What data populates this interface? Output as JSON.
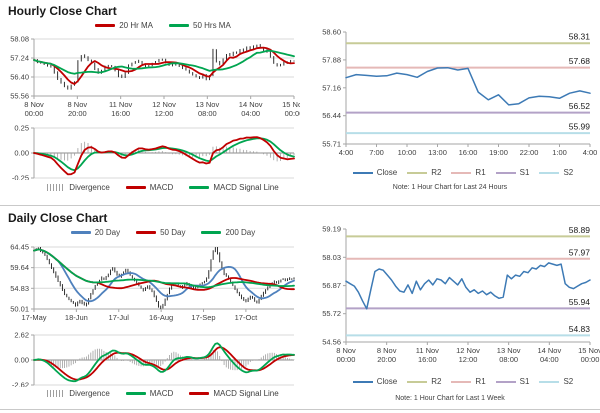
{
  "chart_data": [
    {
      "id": "hourly",
      "type": "line",
      "title": "Hourly Close Chart",
      "y_ticks": [
        "58.08",
        "57.24",
        "56.40",
        "55.56"
      ],
      "ylim": [
        55.56,
        58.08
      ],
      "x_ticks": [
        [
          "8 Nov",
          "00:00"
        ],
        [
          "8 Nov",
          "20:00"
        ],
        [
          "11 Nov",
          "16:00"
        ],
        [
          "12 Nov",
          "12:00"
        ],
        [
          "13 Nov",
          "08:00"
        ],
        [
          "14 Nov",
          "04:00"
        ],
        [
          "15 Nov",
          "00:00"
        ]
      ],
      "close_values": [
        57.15,
        57.05,
        57.0,
        56.95,
        56.9,
        56.85,
        56.6,
        56.3,
        56.15,
        56.0,
        55.85,
        56.05,
        56.2,
        57.1,
        57.35,
        57.3,
        57.15,
        57.0,
        56.75,
        56.6,
        56.7,
        56.85,
        56.9,
        56.85,
        56.7,
        56.45,
        56.4,
        56.55,
        56.9,
        57.0,
        57.05,
        57.1,
        56.95,
        56.85,
        56.9,
        57.0,
        57.05,
        57.15,
        57.2,
        57.05,
        56.9,
        56.95,
        57.0,
        56.9,
        56.8,
        56.7,
        56.6,
        56.5,
        56.4,
        56.35,
        56.5,
        56.3,
        56.45,
        57.6,
        57.1,
        56.95,
        57.2,
        57.4,
        57.35,
        57.5,
        57.45,
        57.6,
        57.55,
        57.7,
        57.65,
        57.75,
        57.8,
        57.7,
        57.6,
        57.5,
        57.3,
        57.0,
        56.9,
        56.95,
        57.05,
        57.0,
        57.1,
        57.1
      ],
      "bar_color": "#1a1a1a",
      "bar_jitter": 0.16,
      "ma_legend": [
        {
          "label": "20 Hr MA",
          "color": "#C00000",
          "window": 6
        },
        {
          "label": "50 Hrs MA",
          "color": "#00A550",
          "window": 14
        }
      ],
      "macd": {
        "y_ticks": [
          "0.25",
          "0.00",
          "-0.25"
        ],
        "ylim": [
          -0.25,
          0.25
        ],
        "macd_color": "#C00000",
        "signal_color": "#00A550",
        "div_color": "#9e9e9e",
        "legend": [
          {
            "label": "Divergence",
            "color": "#9e9e9e",
            "type": "bars"
          },
          {
            "label": "MACD",
            "color": "#C00000",
            "type": "line"
          },
          {
            "label": "MACD Signal Line",
            "color": "#00A550",
            "type": "line"
          }
        ]
      }
    },
    {
      "id": "h24",
      "type": "line",
      "y_ticks": [
        "58.60",
        "57.88",
        "57.16",
        "56.44",
        "55.71"
      ],
      "ylim": [
        55.71,
        58.6
      ],
      "x_ticks": [
        "4:00",
        "7:00",
        "10:00",
        "13:00",
        "16:00",
        "19:00",
        "22:00",
        "1:00",
        "4:00"
      ],
      "close_values": [
        57.42,
        57.5,
        57.48,
        57.46,
        57.47,
        57.54,
        57.5,
        57.43,
        57.58,
        57.67,
        57.68,
        57.62,
        57.66,
        57.05,
        56.85,
        56.98,
        56.72,
        56.75,
        56.9,
        56.94,
        56.93,
        56.89,
        57.02,
        57.08,
        57.02
      ],
      "close_color": "#3D7AB5",
      "levels": [
        {
          "name": "R2",
          "value": 58.31,
          "label": "58.31",
          "color": "#C7CB97"
        },
        {
          "name": "R1",
          "value": 57.68,
          "label": "57.68",
          "color": "#E5B9B7"
        },
        {
          "name": "S1",
          "value": 56.52,
          "label": "56.52",
          "color": "#B3A2C7"
        },
        {
          "name": "S2",
          "value": 55.99,
          "label": "55.99",
          "color": "#B7DEE8"
        }
      ],
      "legend": [
        {
          "label": "Close",
          "color": "#3D7AB5"
        },
        {
          "label": "R2",
          "color": "#C7CB97"
        },
        {
          "label": "R1",
          "color": "#E5B9B7"
        },
        {
          "label": "S1",
          "color": "#B3A2C7"
        },
        {
          "label": "S2",
          "color": "#B7DEE8"
        }
      ],
      "note": "Note: 1 Hour Chart for Last 24 Hours"
    },
    {
      "id": "daily",
      "type": "line",
      "title": "Daily Close Chart",
      "y_ticks": [
        "64.45",
        "59.64",
        "54.83",
        "50.01"
      ],
      "ylim": [
        50.01,
        64.45
      ],
      "x_ticks": [
        "17-May",
        "18-Jun",
        "17-Jul",
        "16-Aug",
        "17-Sep",
        "17-Oct"
      ],
      "x_tick_step": 0.163,
      "close_values": [
        63.6,
        63.9,
        64.2,
        63.5,
        63.0,
        62.5,
        61.5,
        60.5,
        59.5,
        58.5,
        57.5,
        56.5,
        55.5,
        54.5,
        53.5,
        52.8,
        52.2,
        51.8,
        51.3,
        50.8,
        51.5,
        52.0,
        51.4,
        50.9,
        51.2,
        52.5,
        53.5,
        54.5,
        55.5,
        56.2,
        56.8,
        57.3,
        57.0,
        57.5,
        58.2,
        59.0,
        59.6,
        58.8,
        58.0,
        57.5,
        58.0,
        58.5,
        59.3,
        58.6,
        57.8,
        57.2,
        56.6,
        56.0,
        55.4,
        54.8,
        54.4,
        54.9,
        55.3,
        54.7,
        54.0,
        53.0,
        51.8,
        50.6,
        50.2,
        51.0,
        52.2,
        53.5,
        54.8,
        55.6,
        56.1,
        55.8,
        55.4,
        55.0,
        55.3,
        55.7,
        56.0,
        55.6,
        55.2,
        54.9,
        55.1,
        55.5,
        55.8,
        56.1,
        56.4,
        57.2,
        59.0,
        61.5,
        63.4,
        64.2,
        63.0,
        61.0,
        59.2,
        58.2,
        57.6,
        57.0,
        56.2,
        55.4,
        54.6,
        53.8,
        53.2,
        52.6,
        52.2,
        51.8,
        52.4,
        53.0,
        52.5,
        51.9,
        51.5,
        52.2,
        53.0,
        53.8,
        54.4,
        55.0,
        55.5,
        56.0,
        56.4,
        56.1,
        56.5,
        56.8,
        57.0,
        56.7,
        56.9,
        57.1,
        57.0,
        57.2
      ],
      "bar_color": "#1a1a1a",
      "bar_jitter": 0.8,
      "ma_legend": [
        {
          "label": "20 Day",
          "color": "#4F81BD",
          "window": 12
        },
        {
          "label": "50 Day",
          "color": "#C00000",
          "window": 30
        },
        {
          "label": "200 Day",
          "color": "#00A550",
          "window": 70
        }
      ],
      "macd": {
        "y_ticks": [
          "2.62",
          "0.00",
          "-2.62"
        ],
        "ylim": [
          -2.62,
          2.62
        ],
        "macd_color": "#00A550",
        "signal_color": "#C00000",
        "div_color": "#9e9e9e",
        "legend": [
          {
            "label": "Divergence",
            "color": "#9e9e9e",
            "type": "bars"
          },
          {
            "label": "MACD",
            "color": "#00A550",
            "type": "line"
          },
          {
            "label": "MACD Signal Line",
            "color": "#C00000",
            "type": "line"
          }
        ]
      }
    },
    {
      "id": "week",
      "type": "line",
      "y_ticks": [
        "59.19",
        "58.03",
        "56.87",
        "55.72",
        "54.56"
      ],
      "ylim": [
        54.56,
        59.19
      ],
      "x_ticks": [
        [
          "8 Nov",
          "00:00"
        ],
        [
          "8 Nov",
          "20:00"
        ],
        [
          "11 Nov",
          "16:00"
        ],
        [
          "12 Nov",
          "12:00"
        ],
        [
          "13 Nov",
          "08:00"
        ],
        [
          "14 Nov",
          "04:00"
        ],
        [
          "15 Nov",
          "00:00"
        ]
      ],
      "close_values": [
        57.05,
        56.95,
        56.85,
        56.6,
        56.25,
        55.92,
        56.7,
        57.45,
        57.55,
        57.5,
        57.3,
        57.1,
        56.85,
        56.65,
        56.6,
        56.9,
        56.55,
        57.05,
        56.7,
        56.95,
        57.1,
        56.9,
        57.15,
        57.1,
        56.95,
        57.2,
        57.05,
        56.9,
        57.15,
        56.8,
        56.6,
        56.7,
        56.55,
        56.65,
        56.5,
        56.6,
        56.45,
        56.35,
        56.4,
        57.3,
        57.15,
        57.3,
        57.25,
        57.45,
        57.4,
        57.6,
        57.55,
        57.7,
        57.65,
        57.8,
        57.75,
        57.7,
        57.75,
        56.95,
        56.8,
        56.75,
        56.85,
        56.95,
        57.0,
        57.1
      ],
      "close_color": "#3D7AB5",
      "levels": [
        {
          "name": "R2",
          "value": 58.89,
          "label": "58.89",
          "color": "#C7CB97"
        },
        {
          "name": "R1",
          "value": 57.97,
          "label": "57.97",
          "color": "#E5B9B7"
        },
        {
          "name": "S1",
          "value": 55.94,
          "label": "55.94",
          "color": "#B3A2C7"
        },
        {
          "name": "S2",
          "value": 54.83,
          "label": "54.83",
          "color": "#B7DEE8"
        }
      ],
      "legend": [
        {
          "label": "Close",
          "color": "#3D7AB5"
        },
        {
          "label": "R2",
          "color": "#C7CB97"
        },
        {
          "label": "R1",
          "color": "#E5B9B7"
        },
        {
          "label": "S1",
          "color": "#B3A2C7"
        },
        {
          "label": "S2",
          "color": "#B7DEE8"
        }
      ],
      "note": "Note: 1 Hour Chart for Last 1 Week"
    }
  ],
  "style_colors": {
    "grid": "#D9D9D9",
    "axis": "#A6A6A6",
    "tick_text": "#404040",
    "level_label": "#1a1a1a"
  }
}
